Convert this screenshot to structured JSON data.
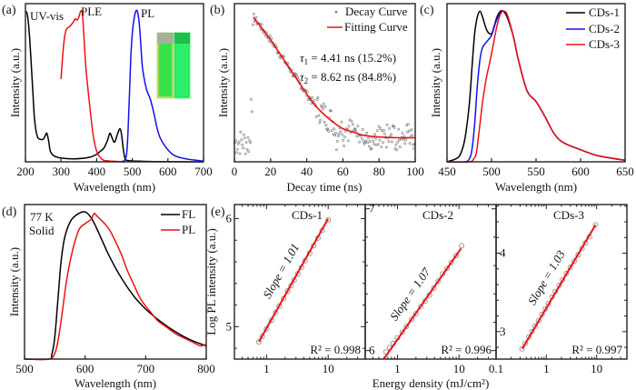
{
  "figure": {
    "panel_labels": [
      "(a)",
      "(b)",
      "(c)",
      "(d)",
      "(e)"
    ]
  },
  "chart_data": [
    {
      "id": "a",
      "type": "line",
      "panel_label": "(a)",
      "xlabel": "Wavelength (nm)",
      "ylabel": "Intensity (a.u.)",
      "xlim": [
        200,
        700
      ],
      "ylim": [
        0,
        1.05
      ],
      "xticks": [
        200,
        300,
        400,
        500,
        600,
        700
      ],
      "yticks_shown": false,
      "annotations": [
        "UV-vis",
        "PLE",
        "PL"
      ],
      "inset": "photo of two cuvettes (daylight and UV illumination, green fluorescence)",
      "series": [
        {
          "name": "UV-vis",
          "color": "#000000",
          "x": [
            200,
            205,
            210,
            215,
            220,
            225,
            230,
            235,
            240,
            250,
            255,
            260,
            265,
            270,
            280,
            300,
            340,
            380,
            400,
            410,
            420,
            430,
            437,
            443,
            450,
            458,
            465,
            470,
            475,
            480,
            490,
            520,
            560,
            700
          ],
          "y": [
            1.0,
            0.98,
            0.88,
            0.7,
            0.5,
            0.3,
            0.2,
            0.16,
            0.15,
            0.15,
            0.17,
            0.19,
            0.14,
            0.07,
            0.04,
            0.025,
            0.02,
            0.03,
            0.05,
            0.07,
            0.09,
            0.14,
            0.19,
            0.16,
            0.13,
            0.18,
            0.22,
            0.18,
            0.08,
            0.02,
            0.008,
            0.004,
            0.002,
            0.0
          ]
        },
        {
          "name": "PLE",
          "color": "#ee1111",
          "x": [
            300,
            305,
            310,
            315,
            325,
            335,
            340,
            345,
            350,
            355,
            360,
            365,
            370,
            380,
            390,
            400,
            410,
            420,
            440,
            480
          ],
          "y": [
            0.55,
            0.72,
            0.83,
            0.88,
            0.9,
            0.93,
            0.95,
            0.94,
            0.96,
            1.0,
            0.98,
            0.8,
            0.62,
            0.38,
            0.18,
            0.07,
            0.03,
            0.01,
            0.005,
            0.0
          ]
        },
        {
          "name": "PL",
          "color": "#1111ee",
          "x": [
            470,
            478,
            484,
            488,
            492,
            496,
            500,
            505,
            510,
            514,
            518,
            522,
            526,
            530,
            540,
            550,
            560,
            570,
            580,
            600,
            620,
            650,
            680,
            700
          ],
          "y": [
            0.0,
            0.01,
            0.05,
            0.2,
            0.45,
            0.7,
            0.85,
            0.95,
            1.0,
            1.0,
            0.95,
            0.85,
            0.7,
            0.6,
            0.48,
            0.42,
            0.33,
            0.22,
            0.15,
            0.08,
            0.04,
            0.02,
            0.01,
            0.005
          ]
        }
      ]
    },
    {
      "id": "b",
      "type": "scatter",
      "panel_label": "(b)",
      "xlabel": "Decay time (ns)",
      "ylabel": "Intensity (a.u.)",
      "xlim": [
        0,
        100
      ],
      "ylim": [
        0,
        1.05
      ],
      "xticks": [
        0,
        20,
        40,
        60,
        80,
        100
      ],
      "yticks_shown": false,
      "legend": {
        "position": "top-right",
        "entries": [
          "Decay Curve",
          "Fitting Curve"
        ]
      },
      "annotations": [
        {
          "symbol": "τ",
          "sub": "1",
          "text": " = 4.41 ns (15.2%)"
        },
        {
          "symbol": "τ",
          "sub": "2",
          "text": " = 8.62 ns (84.8%)"
        }
      ],
      "fit": {
        "name": "Fitting Curve",
        "color": "#ee1111",
        "x": [
          10.5,
          15,
          20,
          25,
          30,
          35,
          40,
          45,
          50,
          55,
          60,
          65,
          70,
          75,
          80,
          90,
          100
        ],
        "y": [
          0.96,
          0.89,
          0.81,
          0.72,
          0.63,
          0.54,
          0.45,
          0.37,
          0.31,
          0.26,
          0.22,
          0.2,
          0.18,
          0.17,
          0.165,
          0.16,
          0.16
        ]
      },
      "scatter_color": "#777777",
      "noise_floor": 0.2,
      "rise_time": 10
    },
    {
      "id": "c",
      "type": "line",
      "panel_label": "(c)",
      "xlabel": "Wavelength (nm)",
      "ylabel": "Intensity (a.u.)",
      "xlim": [
        450,
        650
      ],
      "ylim": [
        0,
        1.05
      ],
      "xticks": [
        450,
        500,
        550,
        600,
        650
      ],
      "yticks_shown": false,
      "legend": {
        "position": "top-right",
        "entries": [
          "CDs-1",
          "CDs-2",
          "CDs-3"
        ]
      },
      "series": [
        {
          "name": "CDs-1",
          "color": "#000000",
          "x": [
            450,
            460,
            465,
            470,
            475,
            478,
            481,
            484,
            487,
            490,
            493,
            496,
            500,
            503,
            506,
            510,
            513,
            516,
            520,
            525,
            530,
            540,
            550,
            560,
            570,
            580,
            600,
            620,
            650
          ],
          "y": [
            0.0,
            0.02,
            0.05,
            0.15,
            0.38,
            0.62,
            0.85,
            0.96,
            1.0,
            0.96,
            0.9,
            0.86,
            0.85,
            0.9,
            0.96,
            1.0,
            1.0,
            0.98,
            0.92,
            0.82,
            0.68,
            0.47,
            0.4,
            0.3,
            0.19,
            0.13,
            0.08,
            0.04,
            0.01
          ]
        },
        {
          "name": "CDs-2",
          "color": "#1111ee",
          "x": [
            450,
            470,
            475,
            478,
            481,
            484,
            487,
            490,
            495,
            500,
            505,
            510,
            514,
            518,
            525,
            530,
            540,
            550,
            560,
            570,
            580,
            600,
            620,
            650
          ],
          "y": [
            0.0,
            0.0,
            0.02,
            0.08,
            0.25,
            0.5,
            0.68,
            0.76,
            0.8,
            0.84,
            0.93,
            0.99,
            1.0,
            0.97,
            0.82,
            0.68,
            0.47,
            0.4,
            0.3,
            0.19,
            0.13,
            0.08,
            0.04,
            0.01
          ]
        },
        {
          "name": "CDs-3",
          "color": "#ee1111",
          "x": [
            450,
            475,
            480,
            483,
            486,
            490,
            494,
            498,
            502,
            506,
            510,
            514,
            518,
            525,
            530,
            540,
            550,
            560,
            570,
            580,
            600,
            620,
            650
          ],
          "y": [
            0.0,
            0.0,
            0.02,
            0.06,
            0.2,
            0.4,
            0.55,
            0.66,
            0.78,
            0.9,
            0.98,
            1.0,
            0.97,
            0.82,
            0.68,
            0.47,
            0.4,
            0.3,
            0.19,
            0.13,
            0.08,
            0.04,
            0.01
          ]
        }
      ]
    },
    {
      "id": "d",
      "type": "line",
      "panel_label": "(d)",
      "xlabel": "Wavelength (nm)",
      "ylabel": "Intensity (a.u.)",
      "xlim": [
        500,
        800
      ],
      "ylim": [
        0,
        1.05
      ],
      "xticks": [
        500,
        600,
        700,
        800
      ],
      "yticks_shown": false,
      "annotations": [
        "77 K",
        "Solid"
      ],
      "legend": {
        "position": "top-right",
        "entries": [
          "FL",
          "PL"
        ]
      },
      "series": [
        {
          "name": "FL",
          "color": "#000000",
          "x": [
            500,
            540,
            545,
            550,
            555,
            560,
            565,
            570,
            575,
            580,
            590,
            600,
            610,
            620,
            640,
            660,
            680,
            700,
            720,
            740,
            760,
            780,
            800
          ],
          "y": [
            0.0,
            0.0,
            0.03,
            0.15,
            0.4,
            0.65,
            0.8,
            0.88,
            0.93,
            0.96,
            0.99,
            1.0,
            0.96,
            0.88,
            0.7,
            0.55,
            0.43,
            0.34,
            0.27,
            0.21,
            0.16,
            0.12,
            0.09
          ]
        },
        {
          "name": "PL",
          "color": "#ee1111",
          "x": [
            500,
            540,
            550,
            555,
            560,
            565,
            570,
            580,
            590,
            600,
            610,
            615,
            620,
            630,
            640,
            650,
            660,
            670,
            680,
            690,
            700,
            710,
            720,
            730,
            740,
            750,
            760,
            770,
            780,
            790,
            800
          ],
          "y": [
            0.0,
            0.0,
            0.04,
            0.12,
            0.25,
            0.4,
            0.55,
            0.75,
            0.88,
            0.92,
            0.95,
            0.99,
            0.97,
            0.93,
            0.88,
            0.8,
            0.71,
            0.6,
            0.51,
            0.42,
            0.36,
            0.31,
            0.26,
            0.23,
            0.2,
            0.17,
            0.15,
            0.13,
            0.11,
            0.09,
            0.1
          ]
        }
      ]
    },
    {
      "id": "e",
      "type": "scatter",
      "panel_label": "(e)",
      "xlabel": "Energy density (mJ/cm²)",
      "ylabel": "Log PL intensity (a.u.)",
      "xscale": "log",
      "subplots": [
        {
          "title": "CDs-1",
          "slope_label": "Slope = 1.01",
          "r2_label": "R² = 0.998",
          "xlim": [
            0.3,
            40
          ],
          "ylim": [
            4.7,
            6.13
          ],
          "xticks": [
            1,
            10
          ],
          "yticks": [
            5,
            6
          ],
          "points_x": [
            0.75,
            0.85,
            1.0,
            1.2,
            1.4,
            1.6,
            1.9,
            2.2,
            2.5,
            2.8,
            3.2,
            3.7,
            4.2,
            5.0,
            5.8,
            6.8,
            8.0,
            10.0
          ],
          "points_y": [
            4.86,
            4.91,
            4.98,
            5.06,
            5.13,
            5.19,
            5.26,
            5.33,
            5.38,
            5.43,
            5.49,
            5.55,
            5.61,
            5.68,
            5.75,
            5.82,
            5.89,
            5.99
          ],
          "fit_x": [
            0.75,
            10.0
          ],
          "fit_y": [
            4.86,
            6.0
          ]
        },
        {
          "title": "CDs-2",
          "slope_label": "Slope = 1.07",
          "r2_label": "R² = 0.996",
          "xlim": [
            0.3,
            40
          ],
          "ylim": [
            5.94,
            7.03
          ],
          "xticks": [
            1,
            10
          ],
          "yticks": [
            6,
            7
          ],
          "points_x": [
            0.65,
            0.75,
            0.85,
            1.0,
            1.2,
            1.4,
            1.7,
            2.0,
            2.4,
            2.8,
            3.3,
            3.9,
            4.6,
            5.4,
            6.4,
            7.5,
            9.0,
            11.0
          ],
          "points_y": [
            5.99,
            6.02,
            6.05,
            6.09,
            6.13,
            6.17,
            6.22,
            6.26,
            6.31,
            6.35,
            6.39,
            6.44,
            6.49,
            6.54,
            6.58,
            6.62,
            6.67,
            6.74
          ],
          "fit_x": [
            0.6,
            10.8
          ],
          "fit_y": [
            5.94,
            6.72
          ]
        },
        {
          "title": "CDs-3",
          "slope_label": "Slope = 1.03",
          "r2_label": "R² = 0.997",
          "xlim": [
            0.1,
            40
          ],
          "ylim": [
            2.65,
            4.62
          ],
          "xticks": [
            0.1,
            1,
            10
          ],
          "yticks": [
            3,
            4
          ],
          "points_x": [
            0.33,
            0.38,
            0.45,
            0.52,
            0.6,
            0.7,
            0.82,
            0.95,
            1.1,
            1.3,
            1.5,
            1.8,
            2.1,
            2.5,
            3.0,
            3.6,
            4.3,
            5.1,
            6.0,
            7.2,
            9.5
          ],
          "points_y": [
            2.78,
            2.85,
            2.93,
            3.0,
            3.07,
            3.14,
            3.22,
            3.29,
            3.36,
            3.44,
            3.51,
            3.59,
            3.66,
            3.74,
            3.82,
            3.9,
            3.98,
            4.06,
            4.13,
            4.21,
            4.36
          ],
          "fit_x": [
            0.33,
            9.5
          ],
          "fit_y": [
            2.78,
            4.36
          ]
        }
      ]
    }
  ]
}
